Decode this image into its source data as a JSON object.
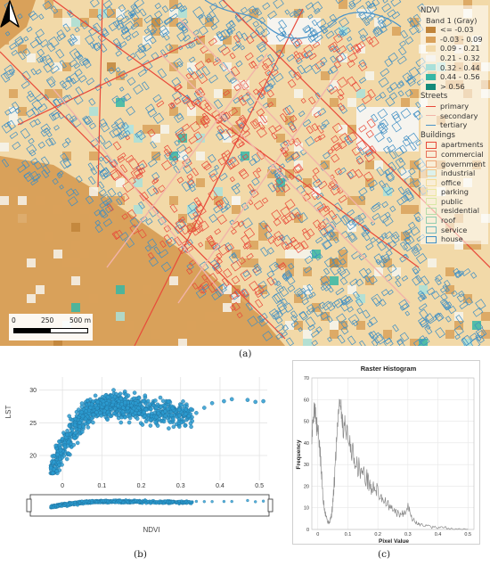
{
  "figure": {
    "panel_a_label": "(a)",
    "panel_b_label": "(b)",
    "panel_c_label": "(c)"
  },
  "map": {
    "legend": {
      "title": "NDVI",
      "band_label": "Band 1 (Gray)",
      "classes": [
        {
          "label": "<= -0.03",
          "color": "#c0843a"
        },
        {
          "label": "-0.03 - 0.09",
          "color": "#d9a15a"
        },
        {
          "label": "0.09 - 0.21",
          "color": "#f2d9a8"
        },
        {
          "label": "0.21 - 0.32",
          "color": "#f6f4ef"
        },
        {
          "label": "0.32 - 0.44",
          "color": "#a9e0da"
        },
        {
          "label": "0.44 - 0.56",
          "color": "#36b7a6"
        },
        {
          "label": "> 0.56",
          "color": "#128a7a"
        }
      ],
      "streets_title": "Streets",
      "streets": [
        {
          "label": "primary",
          "color": "#e8493a"
        },
        {
          "label": "secondary",
          "color": "#f2b3a8"
        },
        {
          "label": "tertiary",
          "color": "#4a93c8"
        }
      ],
      "buildings_title": "Buildings",
      "buildings": [
        {
          "label": "apartments",
          "color": "#e8493a"
        },
        {
          "label": "commercial",
          "color": "#e8735a"
        },
        {
          "label": "government",
          "color": "#eea87a"
        },
        {
          "label": "industrial",
          "color": "#f0c88a"
        },
        {
          "label": "office",
          "color": "#f1dd98"
        },
        {
          "label": "parking",
          "color": "#ece8a0"
        },
        {
          "label": "public",
          "color": "#d8e8a6"
        },
        {
          "label": "residential",
          "color": "#b6dca8"
        },
        {
          "label": "roof",
          "color": "#93cdb0"
        },
        {
          "label": "service",
          "color": "#6fb8bd"
        },
        {
          "label": "house",
          "color": "#3f8fc4"
        }
      ]
    },
    "scalebar": {
      "tick0": "0",
      "tick1": "250",
      "tick2": "500 m"
    }
  },
  "chart_data": [
    {
      "type": "scatter",
      "title": "",
      "xlabel": "NDVI",
      "ylabel": "LST",
      "xlim": [
        -0.05,
        0.52
      ],
      "ylim": [
        17,
        32
      ],
      "x_ticks": [
        "0",
        "0.1",
        "0.2",
        "0.3",
        "0.4",
        "0.5"
      ],
      "y_ticks": [
        "20",
        "25",
        "30"
      ],
      "grid": true,
      "color": "#2b9bd0",
      "trend": {
        "x": [
          -0.03,
          -0.01,
          0.0,
          0.02,
          0.04,
          0.06,
          0.08,
          0.1,
          0.15,
          0.2,
          0.25,
          0.3
        ],
        "y": [
          18.0,
          19.5,
          21.0,
          23.0,
          25.0,
          26.5,
          27.3,
          27.6,
          27.5,
          27.0,
          26.6,
          26.2
        ]
      },
      "outliers": [
        {
          "x": 0.34,
          "y": 26.5
        },
        {
          "x": 0.36,
          "y": 27.3
        },
        {
          "x": 0.38,
          "y": 28.0
        },
        {
          "x": 0.41,
          "y": 28.3
        },
        {
          "x": 0.43,
          "y": 28.6
        },
        {
          "x": 0.49,
          "y": 28.2
        },
        {
          "x": 0.51,
          "y": 28.3
        },
        {
          "x": 0.47,
          "y": 28.5
        }
      ]
    },
    {
      "type": "line",
      "title": "Raster Histogram",
      "xlabel": "Pixel Value",
      "ylabel": "Frequency",
      "xlim": [
        -0.02,
        0.52
      ],
      "ylim": [
        0,
        70
      ],
      "x_ticks": [
        "0",
        "0.1",
        "0.2",
        "0.3",
        "0.4",
        "0.5"
      ],
      "y_ticks": [
        "0",
        "10",
        "20",
        "30",
        "40",
        "50",
        "60",
        "70"
      ],
      "grid": true,
      "color": "#8a8a8a",
      "series": [
        {
          "x": [
            -0.02,
            -0.015,
            -0.01,
            -0.005,
            0.0,
            0.005,
            0.01,
            0.015,
            0.02,
            0.025,
            0.03,
            0.035,
            0.04,
            0.045,
            0.05,
            0.055,
            0.06,
            0.065,
            0.07,
            0.075,
            0.08,
            0.085,
            0.09,
            0.1,
            0.11,
            0.12,
            0.13,
            0.14,
            0.15,
            0.16,
            0.17,
            0.18,
            0.19,
            0.2,
            0.21,
            0.22,
            0.23,
            0.24,
            0.25,
            0.26,
            0.27,
            0.28,
            0.29,
            0.3,
            0.31,
            0.32,
            0.33,
            0.34,
            0.36,
            0.38,
            0.4,
            0.42,
            0.45,
            0.48,
            0.5
          ],
          "y": [
            42,
            52,
            58,
            48,
            45,
            40,
            30,
            20,
            12,
            8,
            5,
            3,
            4,
            6,
            12,
            22,
            35,
            48,
            58,
            60,
            52,
            46,
            50,
            42,
            38,
            34,
            30,
            28,
            26,
            24,
            22,
            18,
            20,
            17,
            15,
            14,
            12,
            10,
            9,
            8,
            7,
            7,
            8,
            12,
            6,
            4,
            3,
            2,
            2,
            1,
            1,
            1,
            0,
            0,
            0
          ]
        }
      ]
    }
  ]
}
